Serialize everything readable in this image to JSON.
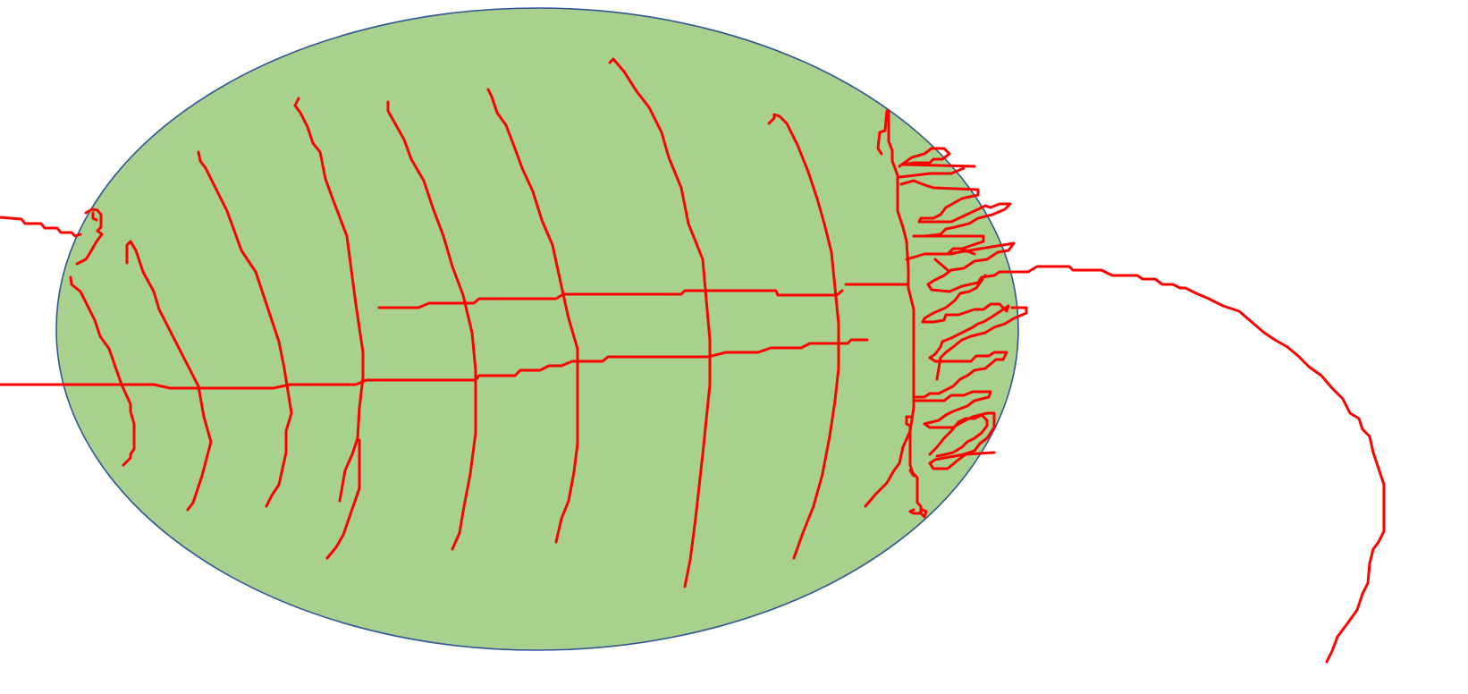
{
  "colors": {
    "background": "#ffffff",
    "ellipse_fill": "#a9d18e",
    "ellipse_stroke": "#2f5597",
    "annotation_stroke": "#ff0000"
  },
  "shapes": {
    "ellipse": {
      "shape": "ellipse",
      "description_name": "green-oval"
    },
    "annotations": {
      "kind": "hand-drawn freeform lines"
    }
  }
}
